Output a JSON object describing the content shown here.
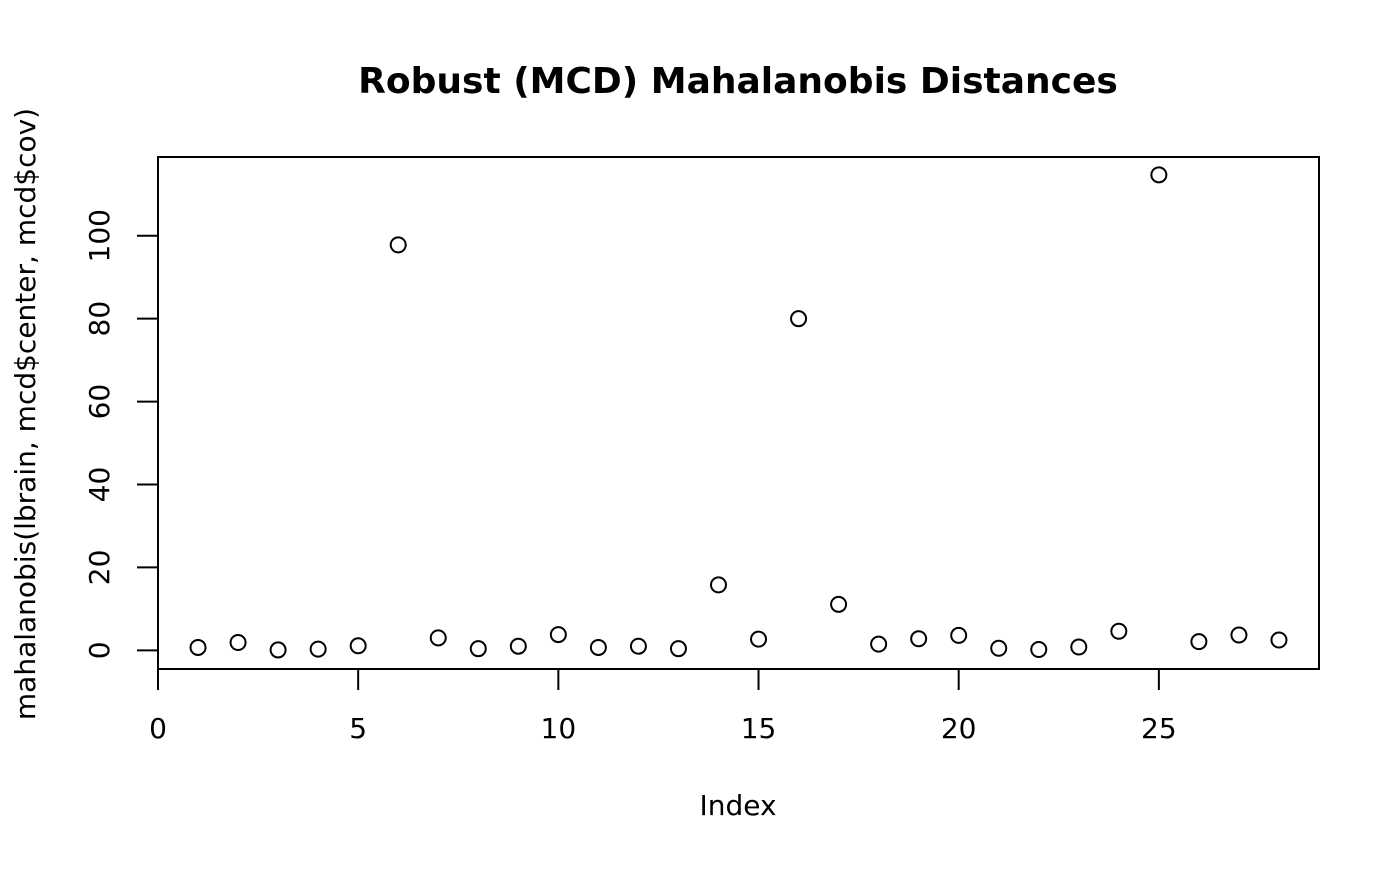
{
  "chart_data": {
    "type": "scatter",
    "title": "Robust (MCD) Mahalanobis Distances",
    "xlabel": "Index",
    "ylabel": "mahalanobis(lbrain, mcd$center, mcd$cov)",
    "xlim": [
      0,
      29
    ],
    "ylim": [
      -4.5,
      119
    ],
    "x_ticks": [
      0,
      5,
      10,
      15,
      20,
      25
    ],
    "y_ticks": [
      0,
      20,
      40,
      60,
      80,
      100
    ],
    "marker": "open-circle",
    "grid": false,
    "legend": "none",
    "points": [
      {
        "x": 1,
        "y": 0.7
      },
      {
        "x": 2,
        "y": 1.9
      },
      {
        "x": 3,
        "y": 0.1
      },
      {
        "x": 4,
        "y": 0.3
      },
      {
        "x": 5,
        "y": 1.1
      },
      {
        "x": 6,
        "y": 97.8
      },
      {
        "x": 7,
        "y": 3.0
      },
      {
        "x": 8,
        "y": 0.4
      },
      {
        "x": 9,
        "y": 1.0
      },
      {
        "x": 10,
        "y": 3.8
      },
      {
        "x": 11,
        "y": 0.7
      },
      {
        "x": 12,
        "y": 1.0
      },
      {
        "x": 13,
        "y": 0.4
      },
      {
        "x": 14,
        "y": 15.8
      },
      {
        "x": 15,
        "y": 2.7
      },
      {
        "x": 16,
        "y": 80.0
      },
      {
        "x": 17,
        "y": 11.1
      },
      {
        "x": 18,
        "y": 1.5
      },
      {
        "x": 19,
        "y": 2.8
      },
      {
        "x": 20,
        "y": 3.6
      },
      {
        "x": 21,
        "y": 0.5
      },
      {
        "x": 22,
        "y": 0.2
      },
      {
        "x": 23,
        "y": 0.8
      },
      {
        "x": 24,
        "y": 4.6
      },
      {
        "x": 25,
        "y": 114.7
      },
      {
        "x": 26,
        "y": 2.1
      },
      {
        "x": 27,
        "y": 3.7
      },
      {
        "x": 28,
        "y": 2.5
      }
    ]
  }
}
